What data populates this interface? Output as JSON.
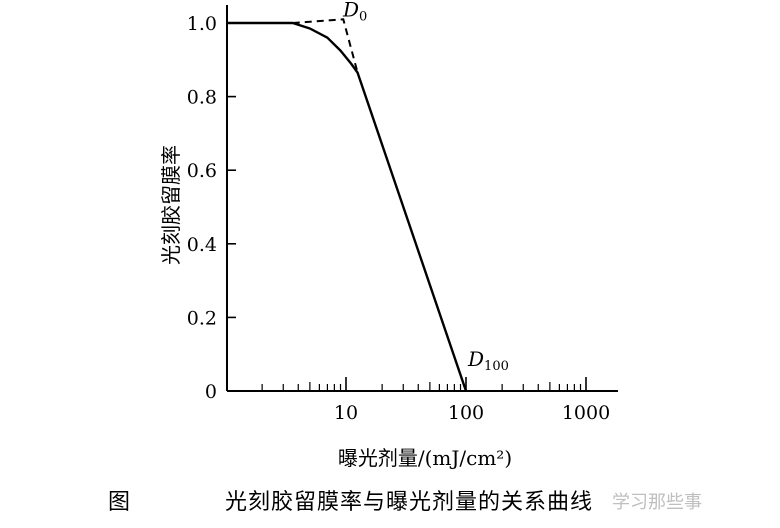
{
  "chart_data": {
    "type": "line",
    "title": "",
    "xlabel": "曝光剂量/(mJ/cm²)",
    "ylabel": "光刻胶留膜率",
    "xscale": "log",
    "xlim": [
      1,
      2000
    ],
    "ylim": [
      0,
      1.05
    ],
    "x_tick_labels": [
      "10",
      "100",
      "1000"
    ],
    "x_ticks": [
      10,
      100,
      1000
    ],
    "y_tick_labels": [
      "0",
      "0.2",
      "0.4",
      "0.6",
      "0.8",
      "1.0"
    ],
    "y_ticks": [
      0,
      0.2,
      0.4,
      0.6,
      0.8,
      1.0
    ],
    "grid": false,
    "series": [
      {
        "style": "solid",
        "points": [
          [
            1,
            1.0
          ],
          [
            3.6,
            1.0
          ],
          [
            5,
            0.985
          ],
          [
            7,
            0.96
          ],
          [
            9,
            0.925
          ],
          [
            11,
            0.89
          ],
          [
            12.5,
            0.865
          ],
          [
            100,
            0.0
          ]
        ]
      },
      {
        "style": "dashed",
        "points": [
          [
            3.6,
            1.0
          ],
          [
            9.5,
            1.01
          ],
          [
            12.5,
            0.865
          ]
        ]
      }
    ],
    "annotations": [
      {
        "label": "D",
        "subscript": "0",
        "x": 10,
        "y": 1.01
      },
      {
        "label": "D",
        "subscript": "100",
        "x": 100,
        "y": 0.0
      }
    ]
  },
  "caption": {
    "prefix": "图",
    "text": "光刻胶留膜率与曝光剂量的关系曲线"
  },
  "watermark": "学习那些事"
}
